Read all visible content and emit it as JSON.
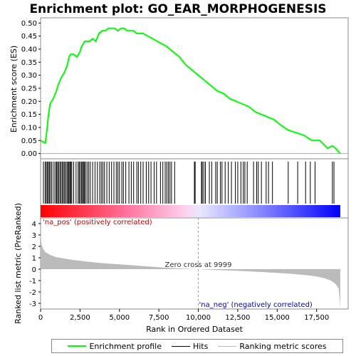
{
  "chart_data": {
    "type": "line",
    "title": "Enrichment plot: GO_EAR_MORPHOGENESIS",
    "xlabel": "Rank in Ordered Dataset",
    "ylabel_top": "Enrichment score (ES)",
    "ylabel_bottom": "Ranked list metric (PreRanked)",
    "xlim": [
      0,
      19500
    ],
    "x_ticks": [
      0,
      2500,
      5000,
      7500,
      10000,
      12500,
      15000,
      17500
    ],
    "x_tick_labels": [
      "0",
      "2,500",
      "5,000",
      "7,500",
      "10,000",
      "12,500",
      "15,000",
      "17,500"
    ],
    "es_ylim": [
      -0.02,
      0.52
    ],
    "es_ticks": [
      0.0,
      0.05,
      0.1,
      0.15,
      0.2,
      0.25,
      0.3,
      0.35,
      0.4,
      0.45,
      0.5
    ],
    "es_tick_labels": [
      "0.00",
      "0.05",
      "0.10",
      "0.15",
      "0.20",
      "0.25",
      "0.30",
      "0.35",
      "0.40",
      "0.45",
      "0.50"
    ],
    "metric_ylim": [
      -3.5,
      4.5
    ],
    "metric_ticks": [
      4,
      3,
      2,
      1,
      0,
      -1,
      -2,
      -3
    ],
    "metric_tick_labels": [
      "4",
      "3",
      "2",
      "1",
      "0",
      "-1",
      "-2",
      "-3"
    ],
    "enrichment_profile": {
      "x": [
        0,
        300,
        400,
        500,
        600,
        800,
        1000,
        1100,
        1300,
        1500,
        1700,
        1800,
        1900,
        2100,
        2300,
        2500,
        2600,
        2700,
        2800,
        3000,
        3100,
        3300,
        3500,
        3700,
        3900,
        4100,
        4300,
        4500,
        4700,
        4900,
        5100,
        5300,
        5500,
        5700,
        5900,
        6100,
        6300,
        6500,
        6800,
        7100,
        7400,
        7700,
        8000,
        8400,
        8800,
        9200,
        9600,
        10000,
        10400,
        10800,
        11200,
        11600,
        12000,
        12400,
        12800,
        13200,
        13600,
        14000,
        14400,
        14800,
        15200,
        15700,
        16200,
        16700,
        17200,
        17700,
        18200,
        18500,
        18700,
        19000
      ],
      "es": [
        0.05,
        0.04,
        0.09,
        0.15,
        0.19,
        0.21,
        0.24,
        0.26,
        0.29,
        0.31,
        0.34,
        0.37,
        0.38,
        0.38,
        0.37,
        0.39,
        0.41,
        0.42,
        0.43,
        0.43,
        0.43,
        0.44,
        0.43,
        0.46,
        0.47,
        0.47,
        0.48,
        0.48,
        0.48,
        0.47,
        0.48,
        0.48,
        0.47,
        0.47,
        0.47,
        0.46,
        0.46,
        0.46,
        0.45,
        0.44,
        0.43,
        0.42,
        0.41,
        0.39,
        0.37,
        0.34,
        0.32,
        0.3,
        0.28,
        0.26,
        0.24,
        0.23,
        0.21,
        0.2,
        0.19,
        0.18,
        0.16,
        0.15,
        0.14,
        0.13,
        0.11,
        0.09,
        0.08,
        0.07,
        0.05,
        0.05,
        0.02,
        0.03,
        0.02,
        0.0
      ]
    },
    "hit_ranks": [
      180,
      290,
      360,
      430,
      500,
      560,
      640,
      720,
      850,
      950,
      1020,
      1080,
      1150,
      1230,
      1300,
      1380,
      1450,
      1520,
      1600,
      1680,
      1750,
      1800,
      1860,
      1920,
      1980,
      2100,
      2250,
      2380,
      2450,
      2520,
      2600,
      2660,
      2720,
      2780,
      2850,
      2950,
      3050,
      3150,
      3300,
      3450,
      3600,
      3750,
      3850,
      3950,
      4050,
      4200,
      4350,
      4500,
      4650,
      4800,
      4900,
      5000,
      5150,
      5250,
      5400,
      5600,
      5750,
      5900,
      6100,
      6200,
      6350,
      6500,
      6700,
      6850,
      7000,
      7200,
      7350,
      7600,
      7750,
      7900,
      8000,
      8100,
      8200,
      8300,
      8500,
      9750,
      9800,
      10200,
      10250,
      10350,
      10450,
      10700,
      10850,
      11100,
      11200,
      11400,
      11500,
      11700,
      11900,
      12100,
      12350,
      12500,
      12700,
      12850,
      12950,
      13100,
      13500,
      13700,
      13800,
      14000,
      14300,
      14450,
      14700,
      15700,
      16300,
      16800,
      17100,
      17400,
      18500,
      18600
    ],
    "metric_curve": {
      "x": [
        0,
        50,
        150,
        300,
        600,
        1000,
        2000,
        3000,
        4000,
        5000,
        6000,
        7000,
        8000,
        9000,
        9999,
        11000,
        12000,
        13000,
        14000,
        15000,
        16000,
        17000,
        17500,
        18000,
        18400,
        18700,
        18900,
        19000
      ],
      "y": [
        3.3,
        2.3,
        1.8,
        1.5,
        1.25,
        1.05,
        0.82,
        0.65,
        0.52,
        0.42,
        0.32,
        0.22,
        0.12,
        0.05,
        0.0,
        -0.07,
        -0.12,
        -0.18,
        -0.25,
        -0.33,
        -0.42,
        -0.55,
        -0.65,
        -0.8,
        -1.0,
        -1.3,
        -1.7,
        -3.3
      ]
    },
    "zero_cross_label": "Zero cross at 9999",
    "zero_cross_rank": 9999,
    "pos_label": "'na_pos' (positively correlated)",
    "neg_label": "'na_neg' (negatively correlated)",
    "colors": {
      "profile": "#00ff00",
      "hits": "#000000",
      "metric_fill": "#bbbbbb",
      "pos_text": "#cc0000",
      "neg_text": "#0000cc",
      "bar_red": "#ff0000",
      "bar_blue": "#0000ff"
    }
  },
  "legend": {
    "items": [
      {
        "label": "Enrichment profile",
        "color": "#00ff00"
      },
      {
        "label": "Hits",
        "color": "#000000"
      },
      {
        "label": "Ranking metric scores",
        "color": "#bbbbbb"
      }
    ]
  }
}
